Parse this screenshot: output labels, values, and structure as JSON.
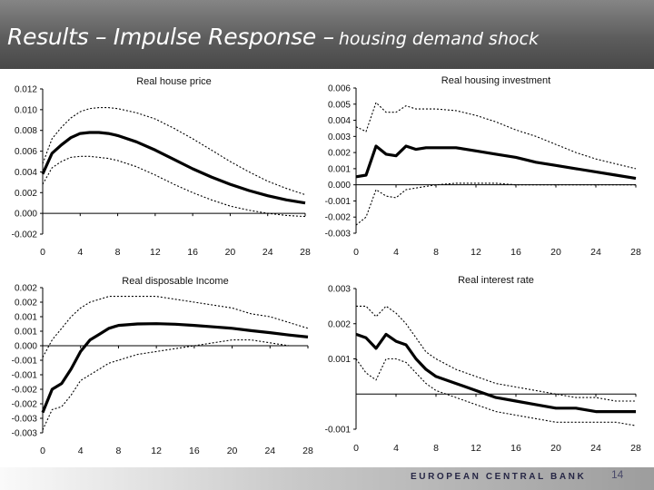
{
  "slide": {
    "title_main": "Results – Impulse Response –",
    "title_sub": "housing demand shock",
    "footer": "EUROPEAN CENTRAL BANK",
    "page_number": "14"
  },
  "chart_data": [
    {
      "type": "line",
      "title": "Real house price",
      "xticks": [
        0,
        4,
        8,
        12,
        16,
        20,
        24,
        28
      ],
      "xlim": [
        0,
        28
      ],
      "ylim": [
        -0.002,
        0.012
      ],
      "yticks": [
        -0.002,
        0.0,
        0.002,
        0.004,
        0.006,
        0.008,
        0.01,
        0.012
      ],
      "ytick_labels": [
        "-0.002",
        "0.000",
        "0.002",
        "0.004",
        "0.006",
        "0.008",
        "0.010",
        "0.012"
      ],
      "zero_line": 0,
      "x": [
        0,
        1,
        2,
        3,
        4,
        5,
        6,
        7,
        8,
        10,
        12,
        14,
        16,
        18,
        20,
        22,
        24,
        26,
        28
      ],
      "series": [
        {
          "role": "estimate",
          "values": [
            0.0038,
            0.0058,
            0.0066,
            0.0073,
            0.0077,
            0.0078,
            0.0078,
            0.0077,
            0.0075,
            0.0069,
            0.0061,
            0.0052,
            0.0043,
            0.0035,
            0.0028,
            0.0022,
            0.0017,
            0.0013,
            0.001
          ]
        },
        {
          "role": "upper band",
          "values": [
            0.0048,
            0.0072,
            0.0083,
            0.0092,
            0.0098,
            0.0101,
            0.0102,
            0.0102,
            0.0101,
            0.0097,
            0.0091,
            0.0082,
            0.0072,
            0.0061,
            0.005,
            0.004,
            0.0031,
            0.0024,
            0.0018
          ]
        },
        {
          "role": "lower band",
          "values": [
            0.0028,
            0.0044,
            0.005,
            0.0054,
            0.0055,
            0.0055,
            0.0054,
            0.0053,
            0.0051,
            0.0045,
            0.0037,
            0.0028,
            0.002,
            0.0013,
            0.0007,
            0.0003,
            0.0,
            -0.0002,
            -0.0003
          ]
        }
      ]
    },
    {
      "type": "line",
      "title": "Real housing investment",
      "xticks": [
        0,
        4,
        8,
        12,
        16,
        20,
        24,
        28
      ],
      "xlim": [
        0,
        28
      ],
      "ylim": [
        -0.003,
        0.006
      ],
      "yticks": [
        -0.003,
        -0.002,
        -0.001,
        0.0,
        0.001,
        0.002,
        0.003,
        0.004,
        0.005,
        0.006
      ],
      "ytick_labels": [
        "-0.003",
        "-0.002",
        "-0.001",
        "0.000",
        "0.001",
        "0.002",
        "0.003",
        "0.004",
        "0.005",
        "0.006"
      ],
      "zero_line": 0,
      "x": [
        0,
        1,
        2,
        3,
        4,
        5,
        6,
        7,
        8,
        10,
        12,
        14,
        16,
        18,
        20,
        22,
        24,
        26,
        28
      ],
      "series": [
        {
          "role": "estimate",
          "values": [
            0.0005,
            0.0006,
            0.0024,
            0.0019,
            0.0018,
            0.0024,
            0.0022,
            0.0023,
            0.0023,
            0.0023,
            0.0021,
            0.0019,
            0.0017,
            0.0014,
            0.0012,
            0.001,
            0.0008,
            0.0006,
            0.0004
          ]
        },
        {
          "role": "upper band",
          "values": [
            0.0036,
            0.0033,
            0.0051,
            0.0045,
            0.0045,
            0.0049,
            0.0047,
            0.0047,
            0.0047,
            0.0046,
            0.0043,
            0.0039,
            0.0034,
            0.003,
            0.0025,
            0.002,
            0.0016,
            0.0013,
            0.001
          ]
        },
        {
          "role": "lower band",
          "values": [
            -0.0025,
            -0.002,
            -0.0003,
            -0.0007,
            -0.0008,
            -0.0003,
            -0.0002,
            -0.0001,
            0.0,
            0.0001,
            0.0001,
            0.0001,
            0.0,
            0.0,
            0.0,
            0.0,
            0.0,
            0.0,
            0.0
          ]
        }
      ]
    },
    {
      "type": "line",
      "title": "Real disposable Income",
      "xticks": [
        0,
        4,
        8,
        12,
        16,
        20,
        24,
        28
      ],
      "xlim": [
        0,
        28
      ],
      "ylim": [
        -0.003,
        0.002
      ],
      "yticks": [
        -0.003,
        -0.0025,
        -0.002,
        -0.0015,
        -0.001,
        -0.0005,
        0.0,
        0.0005,
        0.001,
        0.0015,
        0.002
      ],
      "ytick_labels": [
        "-0.003",
        "-0.003",
        "-0.002",
        "-0.002",
        "-0.001",
        "-0.001",
        "0.000",
        "0.001",
        "0.001",
        "0.002",
        "0.002"
      ],
      "zero_line": 0,
      "x": [
        0,
        1,
        2,
        3,
        4,
        5,
        6,
        7,
        8,
        10,
        12,
        14,
        16,
        18,
        20,
        22,
        24,
        26,
        28
      ],
      "series": [
        {
          "role": "estimate",
          "values": [
            -0.0023,
            -0.0015,
            -0.0013,
            -0.0008,
            -0.0002,
            0.0002,
            0.0004,
            0.0006,
            0.0007,
            0.00075,
            0.00076,
            0.00074,
            0.0007,
            0.00065,
            0.0006,
            0.00052,
            0.00045,
            0.00037,
            0.0003
          ]
        },
        {
          "role": "upper band",
          "values": [
            -0.0004,
            0.0002,
            0.0006,
            0.001,
            0.0013,
            0.0015,
            0.0016,
            0.0017,
            0.0017,
            0.0017,
            0.0017,
            0.0016,
            0.0015,
            0.0014,
            0.0013,
            0.0011,
            0.001,
            0.0008,
            0.0006
          ]
        },
        {
          "role": "lower band",
          "values": [
            -0.0029,
            -0.0022,
            -0.0021,
            -0.0017,
            -0.0012,
            -0.001,
            -0.0008,
            -0.0006,
            -0.0005,
            -0.0003,
            -0.0002,
            -0.0001,
            0.0,
            0.0001,
            0.0002,
            0.0002,
            0.0001,
            0.0,
            0.0
          ]
        }
      ]
    },
    {
      "type": "line",
      "title": "Real interest rate",
      "xticks": [
        0,
        4,
        8,
        12,
        16,
        20,
        24,
        28
      ],
      "xlim": [
        0,
        28
      ],
      "ylim": [
        -0.001,
        0.003
      ],
      "yticks": [
        -0.001,
        0.001,
        0.002,
        0.003
      ],
      "ytick_labels": [
        "-0.001",
        "0.001",
        "0.002",
        "0.003"
      ],
      "zero_line": 0,
      "x": [
        0,
        1,
        2,
        3,
        4,
        5,
        6,
        7,
        8,
        10,
        12,
        14,
        16,
        18,
        20,
        22,
        24,
        26,
        28
      ],
      "series": [
        {
          "role": "estimate",
          "values": [
            0.0017,
            0.0016,
            0.0013,
            0.0017,
            0.0015,
            0.0014,
            0.001,
            0.0007,
            0.0005,
            0.0003,
            0.0001,
            -0.0001,
            -0.0002,
            -0.0003,
            -0.0004,
            -0.0004,
            -0.0005,
            -0.0005,
            -0.0005
          ]
        },
        {
          "role": "upper band",
          "values": [
            0.0025,
            0.0025,
            0.0022,
            0.0025,
            0.0023,
            0.002,
            0.0016,
            0.0012,
            0.001,
            0.0007,
            0.0005,
            0.0003,
            0.0002,
            0.0001,
            0.0,
            -0.0001,
            -0.0001,
            -0.0002,
            -0.0002
          ]
        },
        {
          "role": "lower band",
          "values": [
            0.001,
            0.0006,
            0.0004,
            0.001,
            0.001,
            0.0009,
            0.0006,
            0.0003,
            0.0001,
            -0.0001,
            -0.0003,
            -0.0005,
            -0.0006,
            -0.0007,
            -0.0008,
            -0.0008,
            -0.0008,
            -0.0008,
            -0.0009
          ]
        }
      ]
    }
  ]
}
